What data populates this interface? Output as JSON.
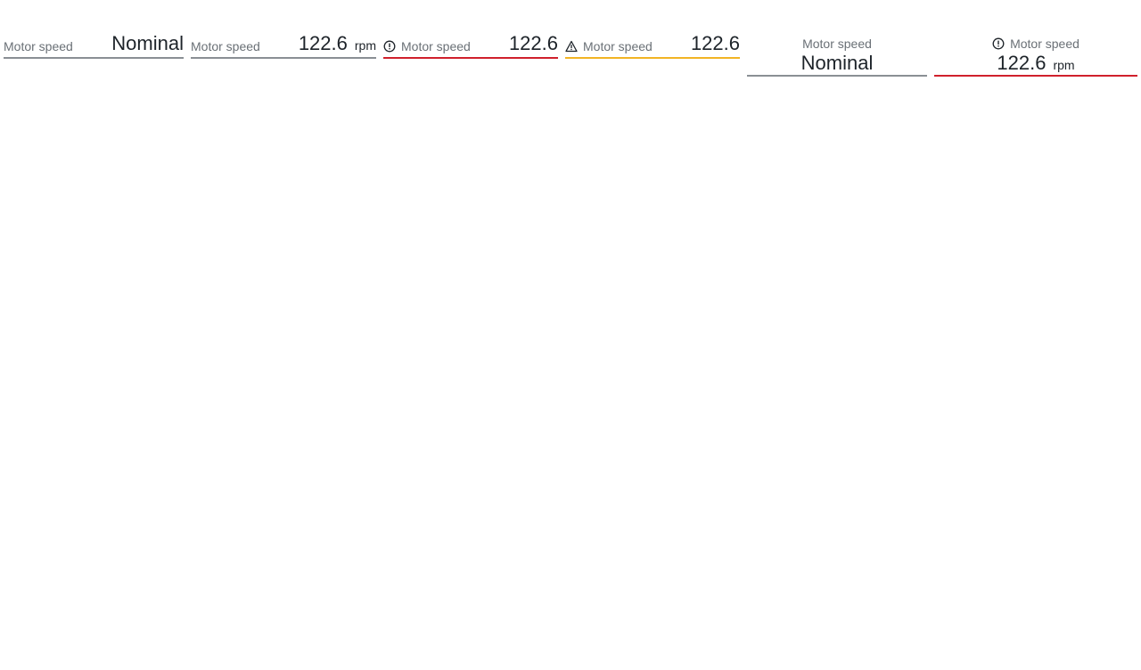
{
  "readouts": [
    {
      "label": "Motor speed",
      "value": "Nominal",
      "unit": "",
      "state": "normal",
      "icon": ""
    },
    {
      "label": "Motor speed",
      "value": "122.6",
      "unit": "rpm",
      "state": "normal",
      "icon": ""
    },
    {
      "label": "Motor speed",
      "value": "122.6",
      "unit": "",
      "state": "alarm",
      "icon": "alarm-circle-icon"
    },
    {
      "label": "Motor speed",
      "value": "122.6",
      "unit": "",
      "state": "warning",
      "icon": "warning-triangle-icon"
    },
    {
      "label": "Motor speed",
      "value": "Nominal",
      "unit": "",
      "state": "normal",
      "icon": ""
    },
    {
      "label": "Motor speed",
      "value": "122.6",
      "unit": "rpm",
      "state": "alarm",
      "icon": "alarm-circle-icon"
    }
  ],
  "colors": {
    "normal_line": "#8a8f94",
    "alarm_line": "#d0202c",
    "warning_line": "#f2b424",
    "label_text": "#6a7076",
    "value_text": "#1d2329"
  }
}
